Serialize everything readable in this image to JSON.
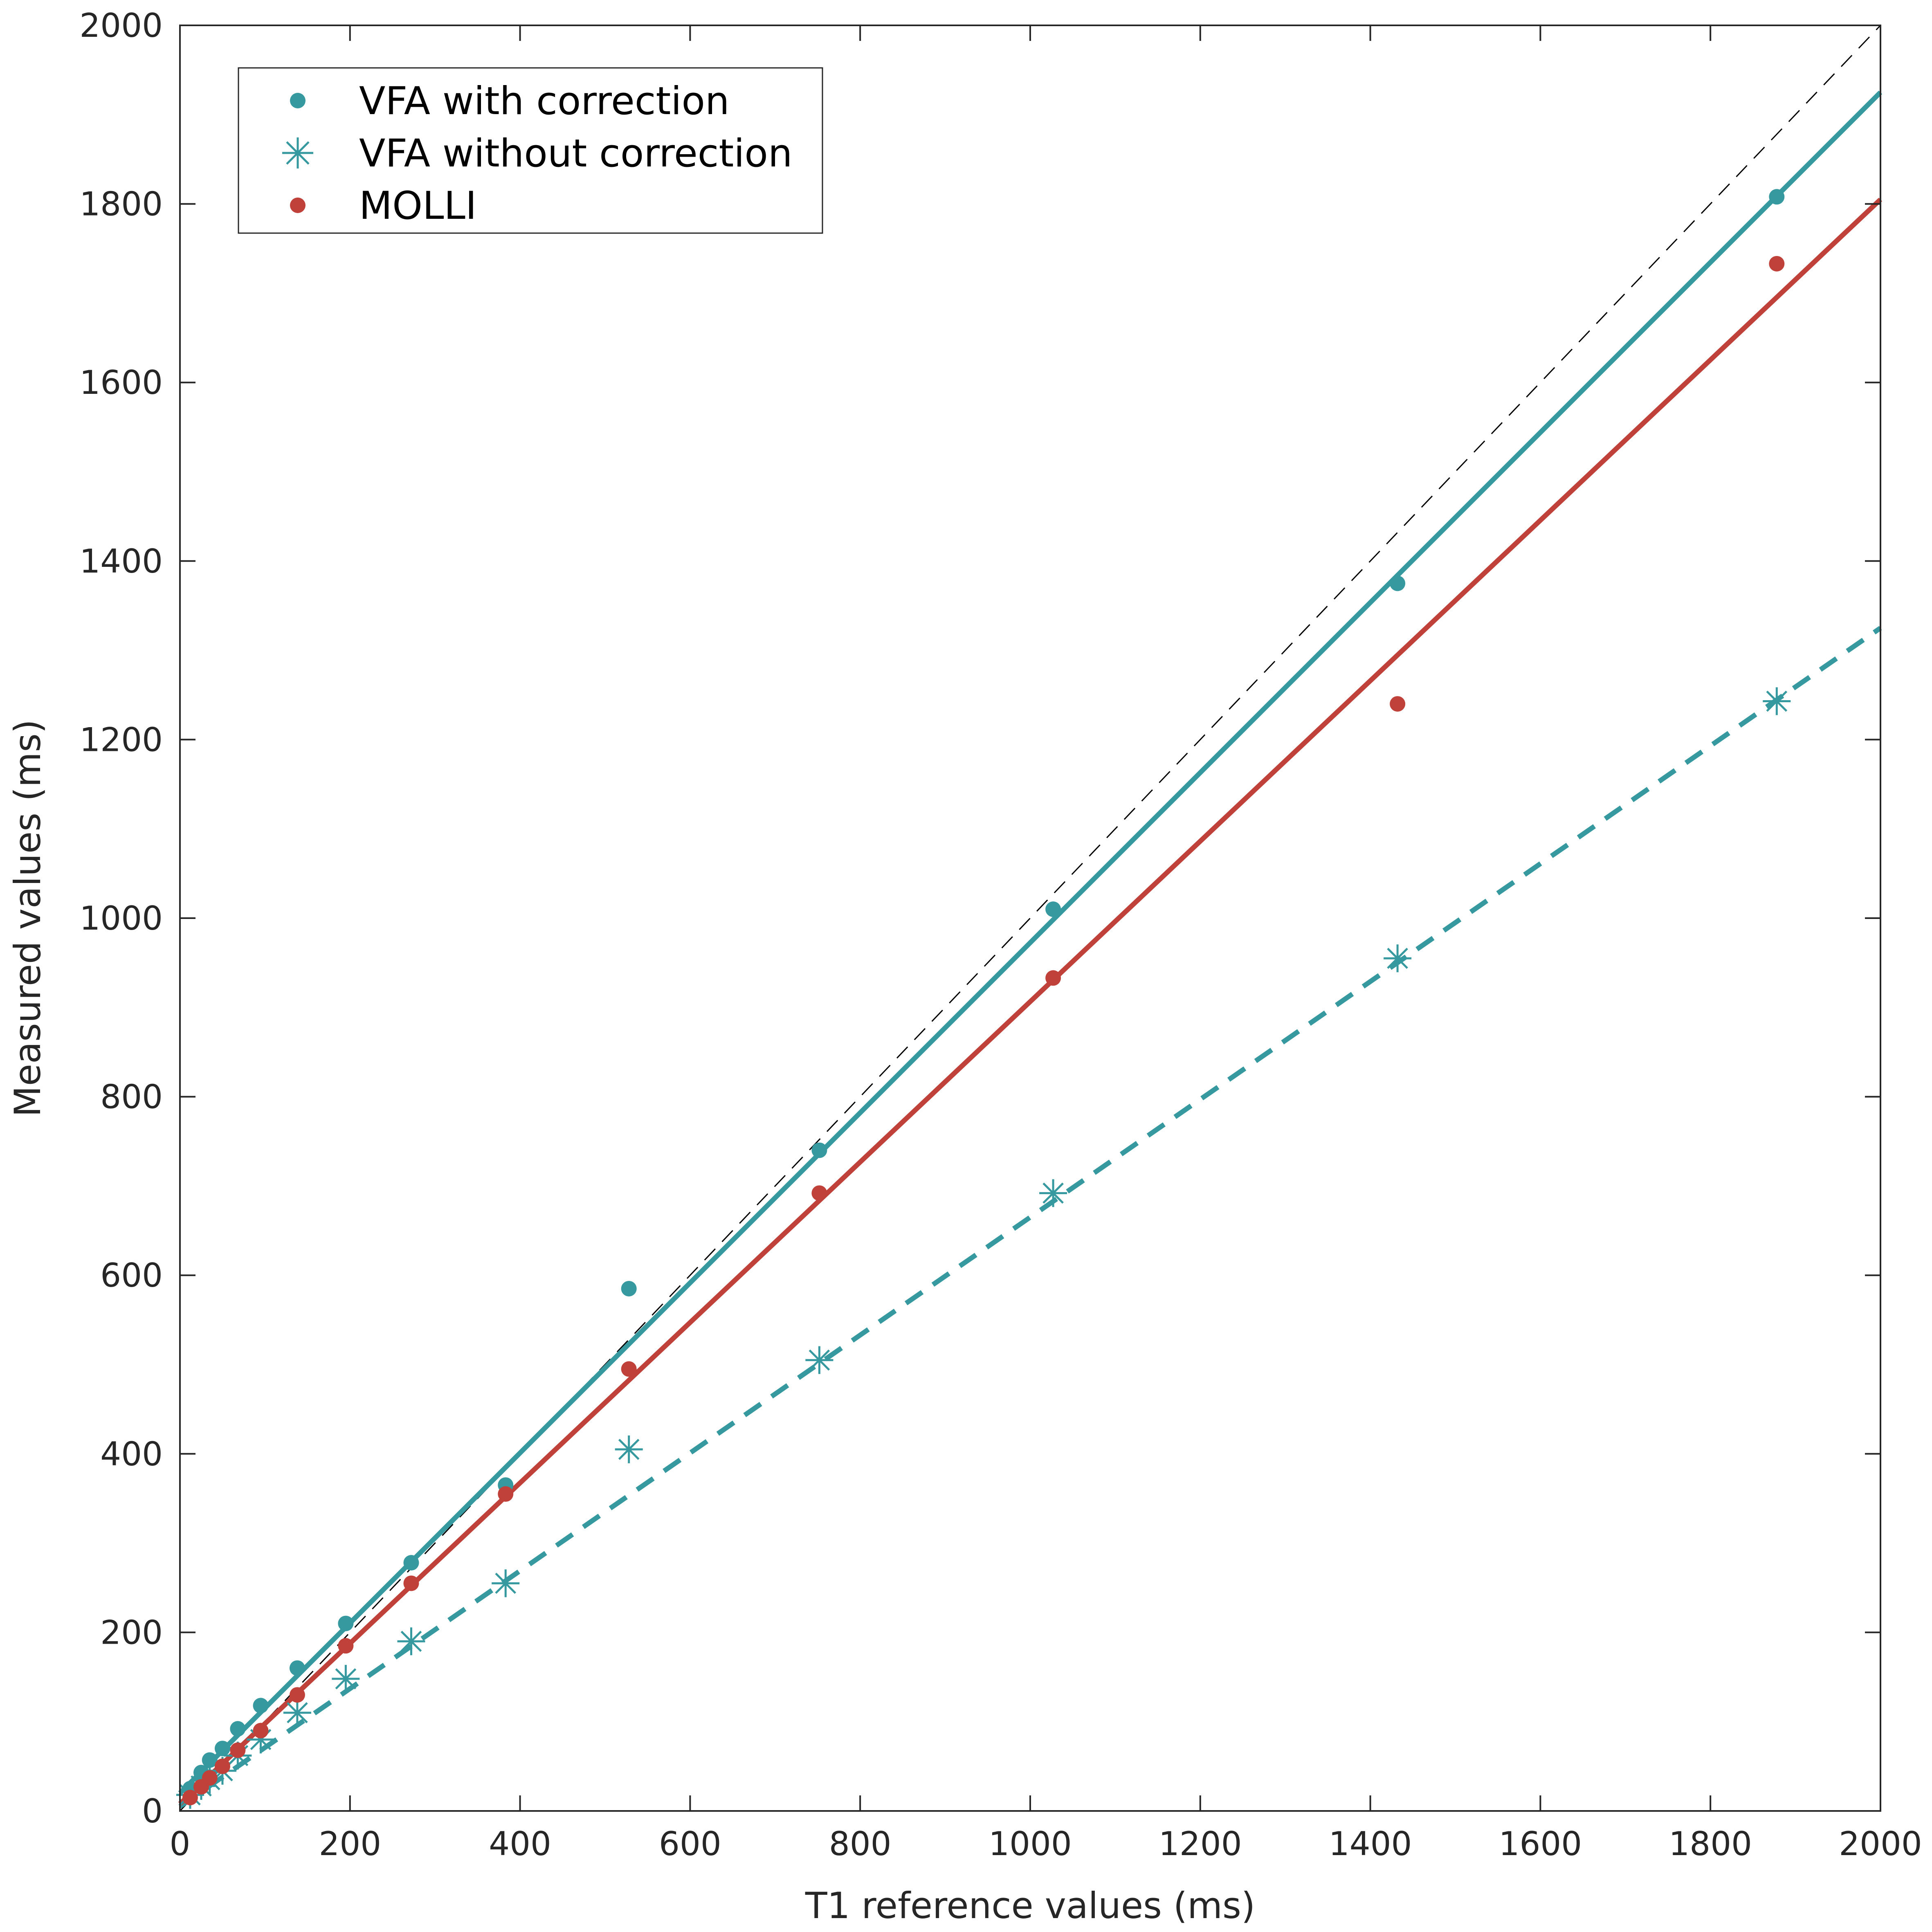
{
  "chart_data": {
    "type": "scatter",
    "xlabel": "T1 reference values (ms)",
    "ylabel": "Measured values (ms)",
    "xlim": [
      0,
      2000
    ],
    "ylim": [
      0,
      2000
    ],
    "xticks": [
      "0",
      "200",
      "400",
      "600",
      "800",
      "1000",
      "1200",
      "1400",
      "1600",
      "1800",
      "2000"
    ],
    "yticks": [
      "0",
      "200",
      "400",
      "600",
      "800",
      "1000",
      "1200",
      "1400",
      "1600",
      "1800",
      "2000"
    ],
    "grid": false,
    "legend_position": "top-left",
    "identity_line": {
      "from": [
        0,
        0
      ],
      "to": [
        2000,
        2000
      ],
      "color": "#000000",
      "style": "dashed"
    },
    "series": [
      {
        "name": "VFA with correction",
        "marker": "dot",
        "color": "#35999f",
        "x": [
          12,
          25,
          35,
          50,
          68,
          95,
          138,
          195,
          272,
          383,
          528,
          752,
          1027,
          1432,
          1878
        ],
        "y": [
          25,
          43,
          57,
          70,
          92,
          118,
          160,
          210,
          278,
          365,
          585,
          740,
          1010,
          1375,
          1808
        ],
        "fit": {
          "from": [
            0,
            20
          ],
          "to": [
            2000,
            1925
          ],
          "style": "solid"
        }
      },
      {
        "name": "VFA without correction",
        "marker": "asterisk",
        "color": "#35999f",
        "x": [
          12,
          25,
          35,
          50,
          68,
          95,
          138,
          195,
          272,
          383,
          528,
          752,
          1027,
          1432,
          1878
        ],
        "y": [
          18,
          28,
          35,
          45,
          62,
          80,
          110,
          148,
          190,
          255,
          405,
          505,
          692,
          955,
          1243
        ],
        "fit": {
          "from": [
            0,
            5
          ],
          "to": [
            2000,
            1325
          ],
          "style": "dashed"
        }
      },
      {
        "name": "MOLLI",
        "marker": "dot",
        "color": "#c0413a",
        "x": [
          12,
          25,
          35,
          50,
          68,
          95,
          138,
          195,
          272,
          383,
          528,
          752,
          1027,
          1432,
          1878
        ],
        "y": [
          15,
          27,
          37,
          50,
          68,
          90,
          130,
          185,
          255,
          355,
          495,
          692,
          933,
          1240,
          1733
        ],
        "fit": {
          "from": [
            0,
            8
          ],
          "to": [
            2000,
            1805
          ],
          "style": "solid"
        }
      }
    ]
  }
}
